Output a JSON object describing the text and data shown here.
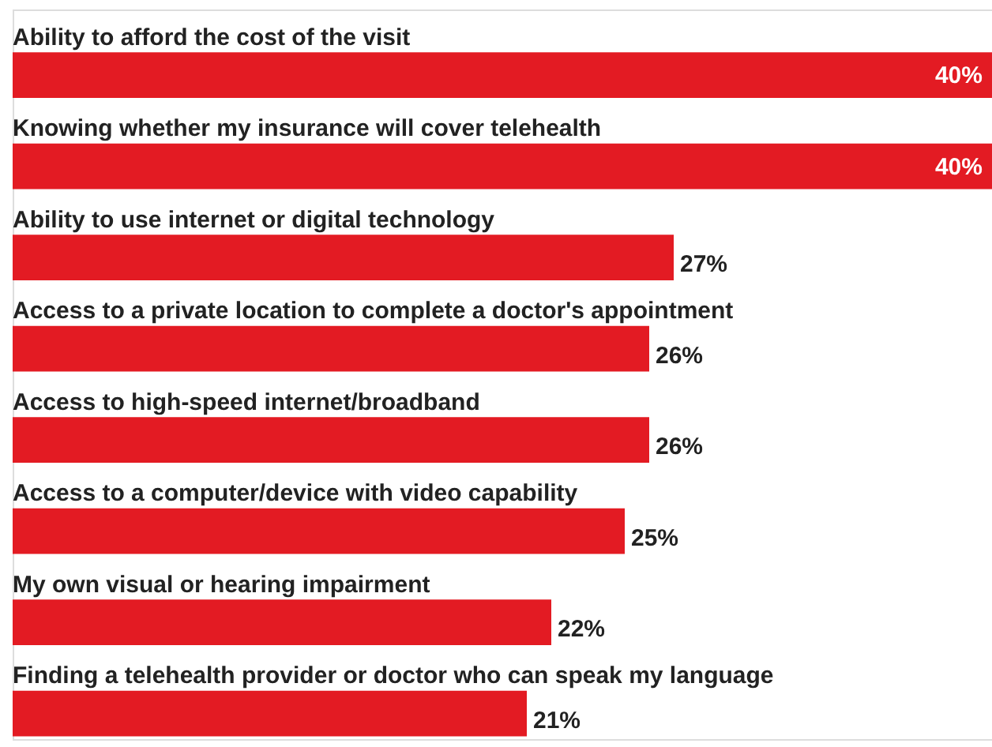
{
  "chart_data": {
    "type": "bar",
    "orientation": "horizontal",
    "categories": [
      "Ability to afford the cost of the visit",
      "Knowing whether my insurance will cover telehealth",
      "Ability to use internet or digital technology",
      "Access to a private location to complete a doctor's appointment",
      "Access to high-speed internet/broadband",
      "Access to a computer/device with video capability",
      "My own visual or hearing impairment",
      "Finding a telehealth provider or doctor who can speak my language"
    ],
    "values": [
      40,
      40,
      27,
      26,
      26,
      25,
      22,
      21
    ],
    "value_labels": [
      "40%",
      "40%",
      "27%",
      "26%",
      "26%",
      "25%",
      "22%",
      "21%"
    ],
    "color": "#e31b23",
    "grid": false
  }
}
